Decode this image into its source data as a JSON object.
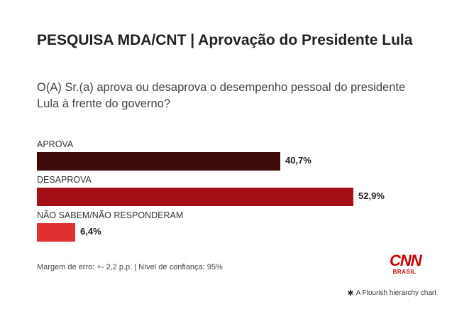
{
  "header": {
    "title": "PESQUISA MDA/CNT | Aprovação do Presidente Lula",
    "subtitle": "O(A) Sr.(a) aprova ou desaprova o desempenho pessoal do presidente Lula à frente do governo?"
  },
  "chart_data": {
    "type": "bar",
    "orientation": "horizontal",
    "categories": [
      "APROVA",
      "DESAPROVA",
      "NÃO SABEM/NÃO RESPONDERAM"
    ],
    "values": [
      40.7,
      52.9,
      6.4
    ],
    "value_labels": [
      "40,7%",
      "52,9%",
      "6,4%"
    ],
    "colors": [
      "#3d0a0a",
      "#a50f15",
      "#e03131"
    ],
    "xlim": [
      0,
      52.9
    ],
    "grid": false,
    "legend": "none"
  },
  "footer": {
    "note": "Margem de erro: +- 2,2 p.p. | Nível de confiança: 95%",
    "logo_main": "CNN",
    "logo_sub": "BRASIL",
    "credit": "A Flourish hierarchy chart",
    "credit_icon": "flourish-asterisk-icon"
  }
}
